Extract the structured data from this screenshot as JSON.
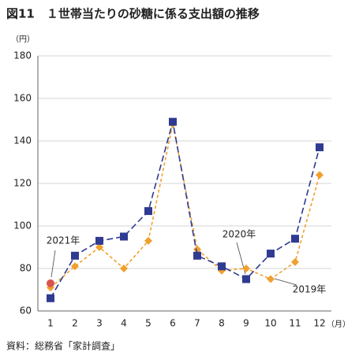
{
  "chart_data": {
    "type": "line",
    "title": "図11　１世帯当たりの砂糖に係る支出額の推移",
    "y_unit": "（円）",
    "x_unit": "（月）",
    "source": "資料：総務省「家計調査」",
    "categories": [
      "1",
      "2",
      "3",
      "4",
      "5",
      "6",
      "7",
      "8",
      "9",
      "10",
      "11",
      "12"
    ],
    "series": [
      {
        "name": "2020年",
        "color": "#2f3b91",
        "marker": "square",
        "values": [
          66,
          86,
          93,
          95,
          107,
          149,
          86,
          81,
          75,
          87,
          94,
          137
        ]
      },
      {
        "name": "2019年",
        "color": "#f0a02c",
        "marker": "diamond",
        "values": [
          71,
          81,
          90,
          80,
          93,
          148,
          89,
          79,
          80,
          75,
          83,
          124
        ]
      },
      {
        "name": "2021年",
        "color": "#d9534f",
        "marker": "circle",
        "values": [
          73,
          null,
          null,
          null,
          null,
          null,
          null,
          null,
          null,
          null,
          null,
          null
        ]
      }
    ],
    "ylim": [
      60,
      180
    ],
    "yticks": [
      60,
      80,
      100,
      120,
      140,
      160,
      180
    ],
    "grid": true
  }
}
